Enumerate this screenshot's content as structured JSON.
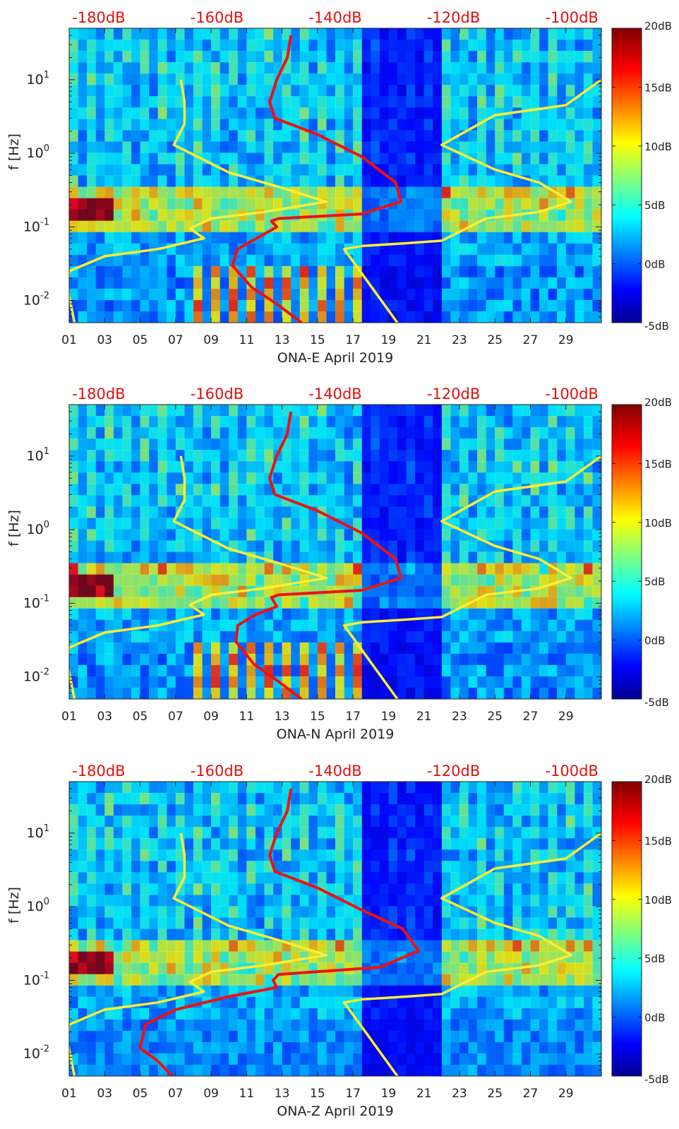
{
  "chart_data": [
    {
      "type": "heatmap",
      "station": "ONA-E",
      "xlabel": "ONA-E April 2019",
      "ylabel": "f [Hz]",
      "x_ticks": [
        "01",
        "03",
        "05",
        "07",
        "09",
        "11",
        "13",
        "15",
        "17",
        "19",
        "21",
        "23",
        "25",
        "27",
        "29"
      ],
      "x_tick_values": [
        1,
        3,
        5,
        7,
        9,
        11,
        13,
        15,
        17,
        19,
        21,
        23,
        25,
        27,
        29
      ],
      "xlim": [
        1,
        31
      ],
      "y_scale": "log",
      "ylim": [
        0.005,
        50
      ],
      "y_ticks": [
        {
          "base": "10",
          "exp": "1",
          "value": 10
        },
        {
          "base": "10",
          "exp": "0",
          "value": 1
        },
        {
          "base": "10",
          "exp": "-1",
          "value": 0.1
        },
        {
          "base": "10",
          "exp": "-2",
          "value": 0.01
        }
      ],
      "top_axis_labels": [
        "-180dB",
        "-160dB",
        "-140dB",
        "-120dB",
        "-100dB"
      ],
      "top_axis_values": [
        -180,
        -160,
        -140,
        -120,
        -100
      ],
      "top_axis_range": [
        -185,
        -95
      ],
      "colorbar": {
        "labels": [
          "20dB",
          "15dB",
          "10dB",
          "5dB",
          "0dB",
          "-5dB"
        ],
        "values": [
          20,
          15,
          10,
          5,
          0,
          -5
        ],
        "range": [
          -5,
          20
        ]
      },
      "series": [
        {
          "name": "yellow-left",
          "color": "#ffee33",
          "points": [
            [
              7.3,
              10
            ],
            [
              7.5,
              5
            ],
            [
              7.5,
              2.5
            ],
            [
              6.9,
              1.3
            ],
            [
              10,
              0.55
            ],
            [
              13,
              0.34
            ],
            [
              15.5,
              0.22
            ],
            [
              12,
              0.16
            ],
            [
              9,
              0.13
            ],
            [
              7.8,
              0.095
            ],
            [
              8.6,
              0.07
            ],
            [
              6,
              0.05
            ],
            [
              3,
              0.04
            ],
            [
              1,
              0.025
            ],
            [
              0.9,
              0.015
            ],
            [
              1.3,
              0.005
            ]
          ]
        },
        {
          "name": "yellow-right",
          "color": "#ffee33",
          "points": [
            [
              31,
              10
            ],
            [
              29,
              4.5
            ],
            [
              25,
              3.3
            ],
            [
              22,
              1.3
            ],
            [
              25,
              0.6
            ],
            [
              27.5,
              0.4
            ],
            [
              29.3,
              0.22
            ],
            [
              27.5,
              0.16
            ],
            [
              24.5,
              0.13
            ],
            [
              22,
              0.065
            ],
            [
              20,
              0.06
            ],
            [
              17.5,
              0.055
            ],
            [
              16.5,
              0.05
            ],
            [
              19.5,
              0.005
            ]
          ]
        },
        {
          "name": "red-noise-model",
          "color": "#ee1111",
          "points": [
            [
              13.5,
              40
            ],
            [
              13.3,
              20
            ],
            [
              12.7,
              10
            ],
            [
              12.3,
              5
            ],
            [
              12.6,
              3
            ],
            [
              15,
              1.8
            ],
            [
              17.5,
              0.9
            ],
            [
              19.4,
              0.4
            ],
            [
              19.7,
              0.22
            ],
            [
              17.5,
              0.15
            ],
            [
              12.8,
              0.13
            ],
            [
              12.4,
              0.12
            ],
            [
              12.7,
              0.1
            ],
            [
              12,
              0.08
            ],
            [
              10.5,
              0.05
            ],
            [
              10.2,
              0.03
            ],
            [
              11.3,
              0.015
            ],
            [
              12.7,
              0.009
            ],
            [
              14.1,
              0.005
            ]
          ]
        }
      ]
    },
    {
      "type": "heatmap",
      "station": "ONA-N",
      "xlabel": "ONA-N April 2019",
      "ylabel": "f [Hz]",
      "x_ticks": [
        "01",
        "03",
        "05",
        "07",
        "09",
        "11",
        "13",
        "15",
        "17",
        "19",
        "21",
        "23",
        "25",
        "27",
        "29"
      ],
      "x_tick_values": [
        1,
        3,
        5,
        7,
        9,
        11,
        13,
        15,
        17,
        19,
        21,
        23,
        25,
        27,
        29
      ],
      "xlim": [
        1,
        31
      ],
      "y_scale": "log",
      "ylim": [
        0.005,
        50
      ],
      "y_ticks": [
        {
          "base": "10",
          "exp": "1",
          "value": 10
        },
        {
          "base": "10",
          "exp": "0",
          "value": 1
        },
        {
          "base": "10",
          "exp": "-1",
          "value": 0.1
        },
        {
          "base": "10",
          "exp": "-2",
          "value": 0.01
        }
      ],
      "top_axis_labels": [
        "-180dB",
        "-160dB",
        "-140dB",
        "-120dB",
        "-100dB"
      ],
      "top_axis_values": [
        -180,
        -160,
        -140,
        -120,
        -100
      ],
      "top_axis_range": [
        -185,
        -95
      ],
      "colorbar": {
        "labels": [
          "20dB",
          "15dB",
          "10dB",
          "5dB",
          "0dB",
          "-5dB"
        ],
        "values": [
          20,
          15,
          10,
          5,
          0,
          -5
        ],
        "range": [
          -5,
          20
        ]
      },
      "series": [
        {
          "name": "yellow-left",
          "color": "#ffee33",
          "points": [
            [
              7.3,
              10
            ],
            [
              7.5,
              5
            ],
            [
              7.5,
              2.5
            ],
            [
              6.9,
              1.3
            ],
            [
              10,
              0.55
            ],
            [
              13,
              0.34
            ],
            [
              15.5,
              0.22
            ],
            [
              12,
              0.16
            ],
            [
              9,
              0.13
            ],
            [
              7.8,
              0.095
            ],
            [
              8.6,
              0.07
            ],
            [
              6,
              0.05
            ],
            [
              3,
              0.04
            ],
            [
              1,
              0.025
            ],
            [
              0.9,
              0.015
            ],
            [
              1.3,
              0.005
            ]
          ]
        },
        {
          "name": "yellow-right",
          "color": "#ffee33",
          "points": [
            [
              31,
              10
            ],
            [
              29,
              4.5
            ],
            [
              25,
              3.3
            ],
            [
              22,
              1.3
            ],
            [
              25,
              0.6
            ],
            [
              27.5,
              0.4
            ],
            [
              29.3,
              0.22
            ],
            [
              27.5,
              0.16
            ],
            [
              24.5,
              0.13
            ],
            [
              22,
              0.065
            ],
            [
              20,
              0.06
            ],
            [
              17.5,
              0.055
            ],
            [
              16.5,
              0.05
            ],
            [
              19.5,
              0.005
            ]
          ]
        },
        {
          "name": "red-noise-model",
          "color": "#ee1111",
          "points": [
            [
              13.5,
              40
            ],
            [
              13.3,
              20
            ],
            [
              12.7,
              10
            ],
            [
              12.3,
              5
            ],
            [
              12.6,
              3
            ],
            [
              15,
              1.8
            ],
            [
              17.5,
              0.9
            ],
            [
              19.4,
              0.4
            ],
            [
              19.7,
              0.22
            ],
            [
              17.5,
              0.15
            ],
            [
              12.8,
              0.13
            ],
            [
              12.4,
              0.12
            ],
            [
              12.7,
              0.09
            ],
            [
              11.5,
              0.07
            ],
            [
              10.5,
              0.05
            ],
            [
              10.4,
              0.03
            ],
            [
              11.4,
              0.015
            ],
            [
              12.7,
              0.009
            ],
            [
              14.1,
              0.005
            ]
          ]
        }
      ]
    },
    {
      "type": "heatmap",
      "station": "ONA-Z",
      "xlabel": "ONA-Z April 2019",
      "ylabel": "f [Hz]",
      "x_ticks": [
        "01",
        "03",
        "05",
        "07",
        "09",
        "11",
        "13",
        "15",
        "17",
        "19",
        "21",
        "23",
        "25",
        "27",
        "29"
      ],
      "x_tick_values": [
        1,
        3,
        5,
        7,
        9,
        11,
        13,
        15,
        17,
        19,
        21,
        23,
        25,
        27,
        29
      ],
      "xlim": [
        1,
        31
      ],
      "y_scale": "log",
      "ylim": [
        0.005,
        50
      ],
      "y_ticks": [
        {
          "base": "10",
          "exp": "1",
          "value": 10
        },
        {
          "base": "10",
          "exp": "0",
          "value": 1
        },
        {
          "base": "10",
          "exp": "-1",
          "value": 0.1
        },
        {
          "base": "10",
          "exp": "-2",
          "value": 0.01
        }
      ],
      "top_axis_labels": [
        "-180dB",
        "-160dB",
        "-140dB",
        "-120dB",
        "-100dB"
      ],
      "top_axis_values": [
        -180,
        -160,
        -140,
        -120,
        -100
      ],
      "top_axis_range": [
        -185,
        -95
      ],
      "colorbar": {
        "labels": [
          "20dB",
          "15dB",
          "10dB",
          "5dB",
          "0dB",
          "-5dB"
        ],
        "values": [
          20,
          15,
          10,
          5,
          0,
          -5
        ],
        "range": [
          -5,
          20
        ]
      },
      "series": [
        {
          "name": "yellow-left",
          "color": "#ffee33",
          "points": [
            [
              7.3,
              10
            ],
            [
              7.5,
              5
            ],
            [
              7.5,
              2.5
            ],
            [
              6.9,
              1.3
            ],
            [
              10,
              0.55
            ],
            [
              13,
              0.34
            ],
            [
              15.5,
              0.22
            ],
            [
              12,
              0.16
            ],
            [
              9,
              0.13
            ],
            [
              7.8,
              0.095
            ],
            [
              8.6,
              0.07
            ],
            [
              6,
              0.05
            ],
            [
              3,
              0.04
            ],
            [
              1,
              0.025
            ],
            [
              0.9,
              0.015
            ],
            [
              1.3,
              0.005
            ]
          ]
        },
        {
          "name": "yellow-right",
          "color": "#ffee33",
          "points": [
            [
              31,
              10
            ],
            [
              29,
              4.5
            ],
            [
              25,
              3.3
            ],
            [
              22,
              1.3
            ],
            [
              25,
              0.6
            ],
            [
              27.5,
              0.4
            ],
            [
              29.3,
              0.22
            ],
            [
              27.5,
              0.16
            ],
            [
              24.5,
              0.13
            ],
            [
              22,
              0.065
            ],
            [
              20,
              0.06
            ],
            [
              17.5,
              0.055
            ],
            [
              16.5,
              0.05
            ],
            [
              19.5,
              0.005
            ]
          ]
        },
        {
          "name": "red-noise-model",
          "color": "#ee1111",
          "points": [
            [
              13.5,
              40
            ],
            [
              13.3,
              20
            ],
            [
              12.7,
              10
            ],
            [
              12.3,
              5
            ],
            [
              12.6,
              3
            ],
            [
              15,
              1.8
            ],
            [
              17.5,
              0.9
            ],
            [
              19.8,
              0.5
            ],
            [
              20.7,
              0.25
            ],
            [
              18.5,
              0.15
            ],
            [
              12.8,
              0.12
            ],
            [
              12.5,
              0.1
            ],
            [
              12.7,
              0.08
            ],
            [
              10,
              0.06
            ],
            [
              7,
              0.04
            ],
            [
              5.3,
              0.025
            ],
            [
              5,
              0.012
            ],
            [
              6,
              0.008
            ],
            [
              6.8,
              0.005
            ]
          ]
        }
      ]
    }
  ]
}
